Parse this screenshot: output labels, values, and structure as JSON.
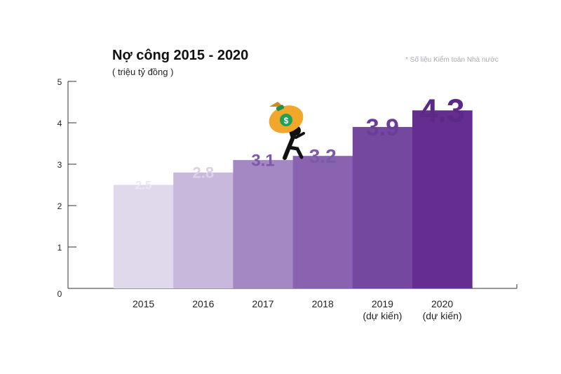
{
  "chart_data": {
    "type": "bar",
    "title": "Nợ công 2015 - 2020",
    "subtitle": "( triệu tỷ đồng )",
    "source_note": "* Số liệu Kiểm toán Nhà nước",
    "categories": [
      "2015",
      "2016",
      "2017",
      "2018",
      "2019\n(dự kiến)",
      "2020\n(dự kiến)"
    ],
    "values": [
      2.5,
      2.8,
      3.1,
      3.2,
      3.9,
      4.3
    ],
    "value_labels": [
      "2.5",
      "2.8",
      "3.1",
      "3.2",
      "3.9",
      "4.3"
    ],
    "bar_colors": [
      "#e0d9ec",
      "#c8b8dc",
      "#a388c4",
      "#8a63b0",
      "#74489f",
      "#662d91"
    ],
    "label_colors": [
      "#ece8f3",
      "#dcd1e9",
      "#7d5aa8",
      "#7d5aa8",
      "#6a3d99",
      "#5b2a86"
    ],
    "yticks": [
      0,
      1,
      2,
      3,
      4,
      5
    ],
    "ylim": [
      0,
      5
    ],
    "xlabel": "",
    "ylabel": "",
    "grid": false,
    "illustration": "person-carrying-money-bag-icon"
  }
}
